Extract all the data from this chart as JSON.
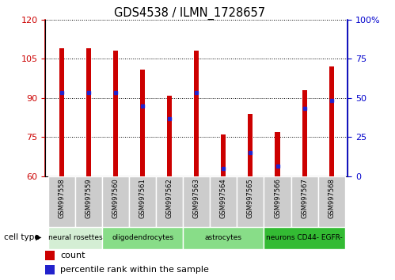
{
  "title": "GDS4538 / ILMN_1728657",
  "samples": [
    "GSM997558",
    "GSM997559",
    "GSM997560",
    "GSM997561",
    "GSM997562",
    "GSM997563",
    "GSM997564",
    "GSM997565",
    "GSM997566",
    "GSM997567",
    "GSM997568"
  ],
  "bar_tops": [
    109,
    109,
    108,
    101,
    91,
    108,
    76,
    84,
    77,
    93,
    102
  ],
  "bar_bottoms": [
    60,
    60,
    60,
    60,
    60,
    60,
    60,
    60,
    60,
    60,
    60
  ],
  "blue_markers": [
    92,
    92,
    92,
    87,
    82,
    92,
    63,
    69,
    64,
    86,
    89
  ],
  "ylim_left": [
    60,
    120
  ],
  "ylim_right": [
    0,
    100
  ],
  "yticks_left": [
    60,
    75,
    90,
    105,
    120
  ],
  "yticks_right": [
    0,
    25,
    50,
    75,
    100
  ],
  "bar_color": "#CC0000",
  "blue_color": "#2222CC",
  "bar_width": 0.18,
  "tick_label_color_left": "#CC0000",
  "tick_label_color_right": "#0000CC",
  "bg_color": "#ffffff",
  "sample_bg_color": "#cccccc",
  "cell_groups": [
    {
      "label": "neural rosettes",
      "start": 0,
      "end": 1,
      "color": "#d4eed4"
    },
    {
      "label": "oligodendrocytes",
      "start": 2,
      "end": 4,
      "color": "#88dd88"
    },
    {
      "label": "astrocytes",
      "start": 5,
      "end": 7,
      "color": "#88dd88"
    },
    {
      "label": "neurons CD44- EGFR-",
      "start": 8,
      "end": 10,
      "color": "#33bb33"
    }
  ]
}
